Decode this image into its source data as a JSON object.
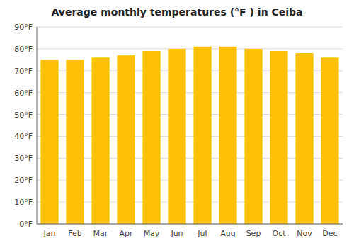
{
  "chart_data": {
    "type": "bar",
    "title": "Average monthly temperatures (°F ) in Ceiba",
    "categories": [
      "Jan",
      "Feb",
      "Mar",
      "Apr",
      "May",
      "Jun",
      "Jul",
      "Aug",
      "Sep",
      "Oct",
      "Nov",
      "Dec"
    ],
    "values": [
      75,
      75,
      76,
      77,
      79,
      80,
      81,
      81,
      80,
      79,
      78,
      76
    ],
    "color": "#FFC107",
    "ylim": [
      0,
      90
    ],
    "yticks": [
      {
        "value": 0,
        "label": "0°F"
      },
      {
        "value": 10,
        "label": "10°F"
      },
      {
        "value": 20,
        "label": "20°F"
      },
      {
        "value": 30,
        "label": "30°F"
      },
      {
        "value": 40,
        "label": "40°F"
      },
      {
        "value": 50,
        "label": "50°F"
      },
      {
        "value": 60,
        "label": "60°F"
      },
      {
        "value": 70,
        "label": "70°F"
      },
      {
        "value": 80,
        "label": "80°F"
      },
      {
        "value": 90,
        "label": "90°F"
      }
    ],
    "grid": true
  }
}
